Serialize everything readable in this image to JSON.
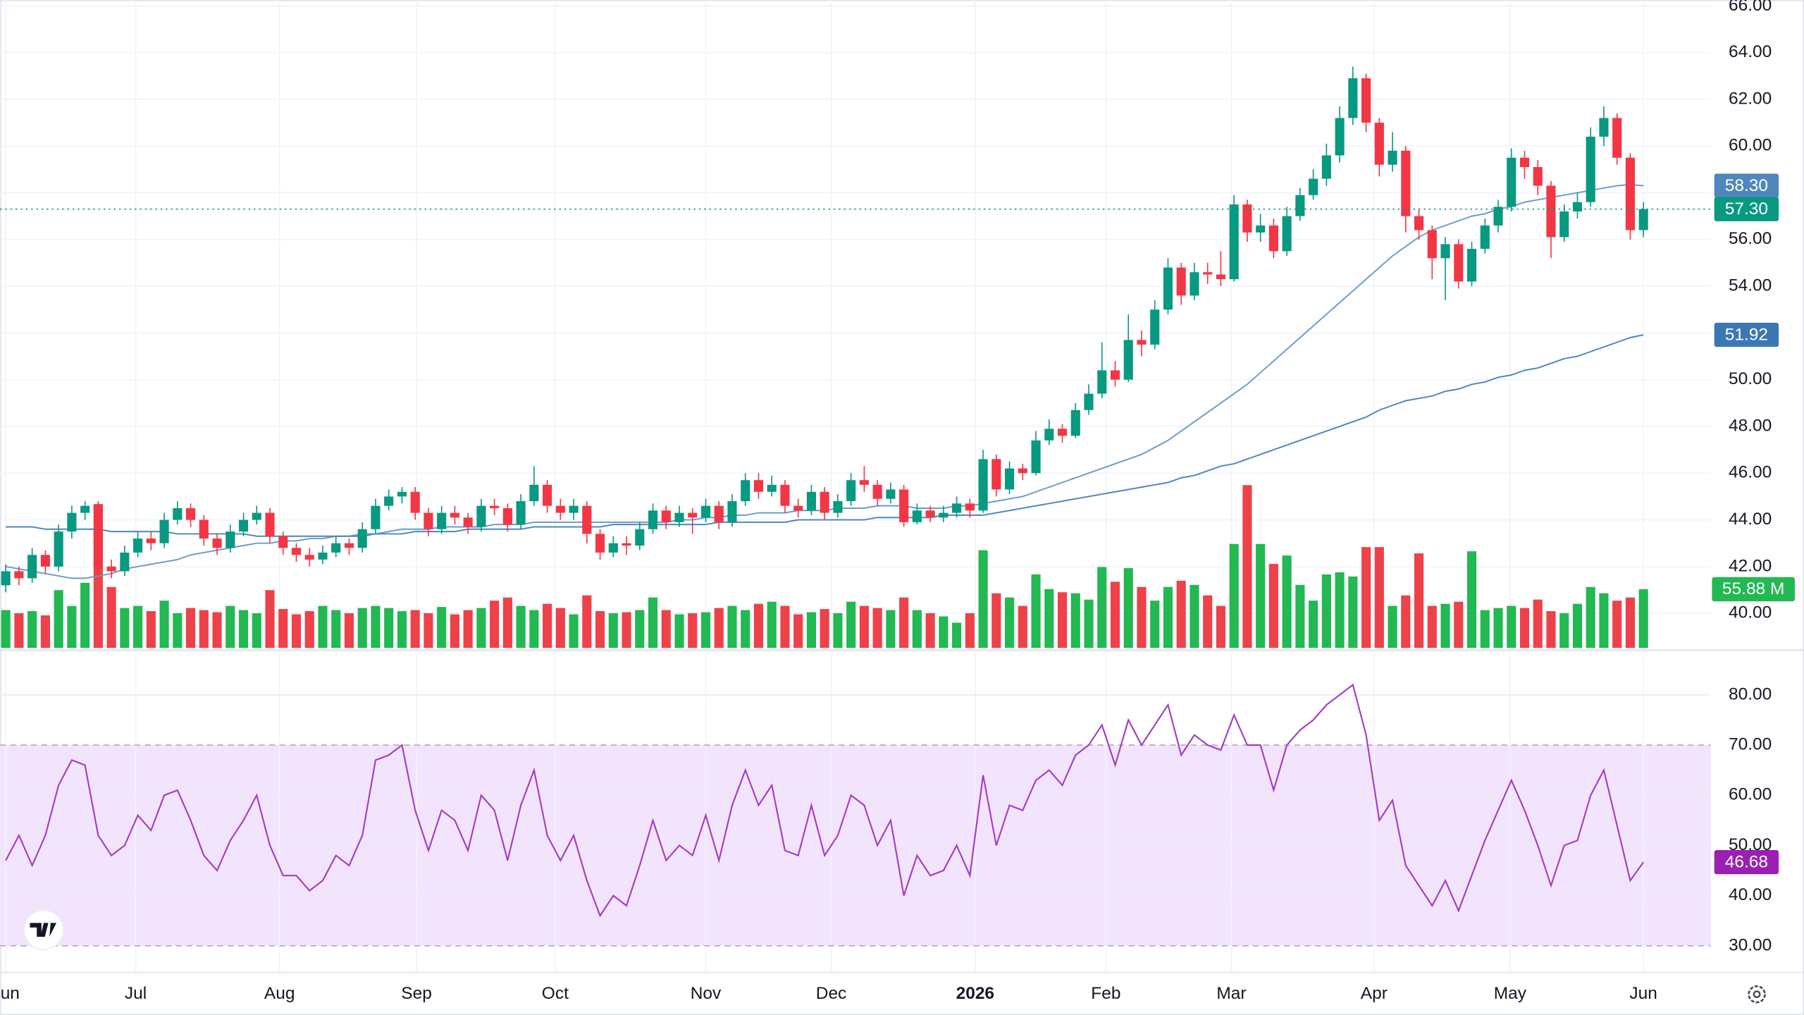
{
  "chart_data": {
    "type": "candlestick",
    "x": [
      0,
      1,
      2,
      3,
      4,
      5,
      6,
      7,
      8,
      9,
      10,
      11,
      12,
      13,
      14,
      15,
      16,
      17,
      18,
      19,
      20,
      21,
      22,
      23,
      24,
      25,
      26,
      27,
      28,
      29,
      30,
      31,
      32,
      33,
      34,
      35,
      36,
      37,
      38,
      39,
      40,
      41,
      42,
      43,
      44,
      45,
      46,
      47,
      48,
      49,
      50,
      51,
      52,
      53,
      54,
      55,
      56,
      57,
      58,
      59,
      60,
      61,
      62,
      63,
      64,
      65,
      66,
      67,
      68,
      69,
      70,
      71,
      72,
      73,
      74,
      75,
      76,
      77,
      78,
      79,
      80,
      81,
      82,
      83,
      84,
      85,
      86,
      87,
      88,
      89,
      90,
      91,
      92,
      93,
      94,
      95,
      96,
      97,
      98,
      99,
      100,
      101,
      102,
      103,
      104,
      105,
      106,
      107,
      108,
      109,
      110,
      111,
      112,
      113,
      114,
      115,
      116,
      117,
      118,
      119,
      120,
      121,
      122,
      123,
      124
    ],
    "xlim": [
      -0.436,
      129.1
    ],
    "xticks": [
      {
        "value": 0,
        "label": "Jun"
      },
      {
        "value": 9.84,
        "label": "Jul"
      },
      {
        "value": 20.73,
        "label": "Aug"
      },
      {
        "value": 31.1,
        "label": "Sep"
      },
      {
        "value": 41.6,
        "label": "Oct"
      },
      {
        "value": 53.0,
        "label": "Nov"
      },
      {
        "value": 62.5,
        "label": "Dec"
      },
      {
        "value": 73.4,
        "label": "2026"
      },
      {
        "value": 83.3,
        "label": "Feb"
      },
      {
        "value": 92.8,
        "label": "Mar"
      },
      {
        "value": 103.6,
        "label": "Apr"
      },
      {
        "value": 113.9,
        "label": "May"
      },
      {
        "value": 124.0,
        "label": "Jun"
      }
    ],
    "ylim": [
      38.52,
      66.25
    ],
    "yticks": [
      {
        "value": 40,
        "label": "40.00"
      },
      {
        "value": 42,
        "label": "42.00"
      },
      {
        "value": 44,
        "label": "44.00"
      },
      {
        "value": 46,
        "label": "46.00"
      },
      {
        "value": 48,
        "label": "48.00"
      },
      {
        "value": 50,
        "label": "50.00"
      },
      {
        "value": 52,
        "label": "52.00"
      },
      {
        "value": 54,
        "label": "54.00"
      },
      {
        "value": 56,
        "label": "56.00"
      },
      {
        "value": 58,
        "label": "58.00"
      },
      {
        "value": 60,
        "label": "60.00"
      },
      {
        "value": 62,
        "label": "62.00"
      },
      {
        "value": 64,
        "label": "64.00"
      },
      {
        "value": 66,
        "label": "66.00"
      }
    ],
    "grid": true,
    "up_color": "#089981",
    "down_color": "#f23645",
    "open": [
      41.2,
      41.8,
      41.5,
      42.5,
      42.0,
      43.5,
      44.3,
      44.6,
      42.0,
      41.8,
      42.6,
      43.2,
      43.0,
      44.0,
      44.5,
      44.0,
      43.2,
      42.8,
      43.5,
      44.0,
      44.3,
      43.3,
      42.8,
      42.5,
      42.3,
      42.6,
      43.0,
      42.8,
      43.6,
      44.6,
      45.0,
      45.2,
      44.3,
      43.6,
      44.3,
      44.1,
      43.7,
      44.6,
      44.5,
      43.8,
      44.8,
      45.5,
      44.6,
      44.3,
      44.6,
      43.4,
      42.6,
      43.0,
      42.9,
      43.6,
      44.4,
      43.9,
      44.3,
      44.1,
      44.6,
      43.9,
      44.8,
      45.7,
      45.2,
      45.5,
      44.6,
      44.4,
      45.2,
      44.3,
      44.8,
      45.7,
      45.5,
      44.9,
      45.3,
      43.9,
      44.4,
      44.1,
      44.3,
      44.7,
      44.4,
      46.6,
      45.3,
      46.2,
      46.0,
      47.4,
      47.9,
      47.6,
      48.7,
      49.4,
      50.4,
      50.0,
      51.7,
      51.5,
      53.0,
      54.8,
      53.6,
      54.6,
      54.5,
      54.3,
      57.5,
      56.3,
      56.6,
      55.5,
      57.0,
      57.9,
      58.6,
      59.6,
      61.2,
      62.9,
      61.0,
      59.2,
      59.8,
      57.0,
      56.4,
      55.2,
      55.8,
      54.2,
      55.6,
      56.6,
      57.4,
      59.5,
      59.1,
      58.3,
      56.1,
      57.2,
      57.6,
      60.4,
      61.2,
      59.5,
      56.4
    ],
    "high": [
      42.1,
      42.0,
      42.8,
      42.7,
      43.8,
      44.6,
      44.8,
      44.8,
      42.3,
      42.9,
      43.5,
      43.5,
      44.3,
      44.8,
      44.7,
      44.2,
      43.4,
      43.8,
      44.3,
      44.6,
      44.5,
      43.5,
      43.0,
      42.8,
      42.9,
      43.3,
      43.2,
      43.9,
      44.9,
      45.3,
      45.4,
      45.4,
      44.5,
      44.6,
      44.6,
      44.3,
      44.9,
      44.9,
      44.7,
      45.1,
      46.3,
      45.7,
      44.9,
      44.9,
      44.8,
      43.6,
      43.3,
      43.3,
      43.9,
      44.7,
      44.6,
      44.6,
      44.5,
      44.9,
      44.8,
      45.1,
      46.0,
      46.0,
      45.9,
      45.7,
      44.9,
      45.5,
      45.4,
      45.1,
      46.0,
      46.3,
      45.7,
      45.6,
      45.5,
      44.7,
      44.6,
      44.6,
      45.0,
      44.9,
      47.0,
      46.8,
      46.5,
      46.4,
      47.8,
      48.3,
      48.1,
      49.0,
      49.8,
      51.6,
      50.8,
      52.8,
      52.1,
      53.4,
      55.2,
      55.0,
      55.0,
      55.0,
      55.5,
      57.9,
      57.7,
      57.1,
      56.9,
      57.4,
      58.2,
      59.0,
      60.1,
      61.7,
      63.4,
      63.1,
      61.2,
      60.6,
      60.0,
      57.3,
      56.6,
      56.1,
      56.0,
      55.9,
      56.9,
      57.7,
      59.9,
      59.8,
      59.4,
      58.5,
      57.5,
      58.0,
      60.8,
      61.7,
      61.4,
      59.7,
      57.6
    ],
    "low": [
      40.9,
      41.2,
      41.3,
      41.7,
      41.8,
      43.2,
      44.0,
      41.6,
      41.5,
      41.6,
      42.4,
      42.7,
      42.8,
      43.8,
      43.7,
      42.9,
      42.5,
      42.6,
      43.3,
      43.8,
      43.0,
      42.5,
      42.2,
      42.0,
      42.1,
      42.4,
      42.5,
      42.6,
      43.4,
      44.4,
      44.7,
      44.0,
      43.3,
      43.4,
      43.8,
      43.4,
      43.5,
      44.2,
      43.5,
      43.6,
      44.6,
      44.3,
      44.0,
      44.0,
      43.0,
      42.3,
      42.4,
      42.5,
      42.7,
      43.4,
      43.6,
      43.7,
      43.4,
      43.9,
      43.6,
      43.7,
      44.6,
      44.9,
      45.0,
      44.3,
      44.1,
      44.2,
      44.0,
      44.1,
      44.6,
      45.2,
      44.6,
      44.7,
      43.7,
      43.8,
      43.9,
      43.9,
      44.1,
      44.1,
      44.3,
      45.0,
      45.1,
      45.7,
      45.9,
      47.2,
      47.3,
      47.5,
      48.5,
      49.2,
      49.7,
      49.9,
      51.0,
      51.3,
      52.8,
      53.2,
      53.4,
      54.1,
      54.0,
      54.2,
      55.9,
      55.9,
      55.2,
      55.3,
      56.8,
      57.7,
      58.3,
      59.3,
      60.9,
      60.6,
      58.7,
      58.9,
      56.3,
      56.0,
      54.3,
      53.4,
      53.9,
      54.0,
      55.4,
      56.3,
      57.2,
      58.6,
      57.9,
      55.2,
      55.9,
      56.9,
      57.4,
      60.0,
      59.2,
      56.0,
      56.1
    ],
    "close": [
      41.8,
      41.5,
      42.5,
      42.0,
      43.5,
      44.3,
      44.6,
      42.0,
      41.8,
      42.6,
      43.2,
      43.0,
      44.0,
      44.5,
      44.0,
      43.2,
      42.8,
      43.5,
      44.0,
      44.3,
      43.3,
      42.8,
      42.5,
      42.3,
      42.6,
      43.0,
      42.8,
      43.6,
      44.6,
      45.0,
      45.2,
      44.3,
      43.6,
      44.3,
      44.1,
      43.7,
      44.6,
      44.5,
      43.8,
      44.8,
      45.5,
      44.6,
      44.3,
      44.6,
      43.4,
      42.6,
      43.0,
      42.9,
      43.6,
      44.4,
      43.9,
      44.3,
      44.1,
      44.6,
      43.9,
      44.8,
      45.7,
      45.2,
      45.5,
      44.6,
      44.4,
      45.2,
      44.3,
      44.8,
      45.7,
      45.5,
      44.9,
      45.3,
      43.9,
      44.4,
      44.1,
      44.3,
      44.7,
      44.4,
      46.6,
      45.3,
      46.2,
      46.0,
      47.4,
      47.9,
      47.6,
      48.7,
      49.4,
      50.4,
      50.0,
      51.7,
      51.5,
      53.0,
      54.8,
      53.6,
      54.6,
      54.5,
      54.3,
      57.5,
      56.3,
      56.6,
      55.5,
      57.0,
      57.9,
      58.6,
      59.6,
      61.2,
      62.9,
      61.0,
      59.2,
      59.8,
      57.0,
      56.4,
      55.2,
      55.8,
      54.2,
      55.6,
      56.6,
      57.4,
      59.5,
      59.1,
      58.3,
      56.1,
      57.2,
      57.6,
      60.4,
      61.2,
      59.5,
      56.4,
      57.3
    ],
    "close_label": "57.30",
    "series": [
      {
        "color": "#6a9cc9",
        "label_color": "#4f86bd",
        "last_label": "58.30",
        "values": [
          42.0,
          41.9,
          41.8,
          41.7,
          41.6,
          41.5,
          41.5,
          41.6,
          41.7,
          41.9,
          42.0,
          42.1,
          42.2,
          42.3,
          42.5,
          42.6,
          42.7,
          42.8,
          42.9,
          43.0,
          43.0,
          43.1,
          43.1,
          43.2,
          43.2,
          43.3,
          43.3,
          43.4,
          43.4,
          43.5,
          43.6,
          43.6,
          43.6,
          43.7,
          43.7,
          43.7,
          43.7,
          43.8,
          43.8,
          43.8,
          43.9,
          43.9,
          43.9,
          43.9,
          43.9,
          43.9,
          43.9,
          43.9,
          43.9,
          43.9,
          43.9,
          44.0,
          44.0,
          44.1,
          44.1,
          44.2,
          44.2,
          44.3,
          44.3,
          44.3,
          44.4,
          44.4,
          44.4,
          44.5,
          44.5,
          44.5,
          44.6,
          44.6,
          44.6,
          44.5,
          44.5,
          44.5,
          44.6,
          44.6,
          44.7,
          44.8,
          44.9,
          45.0,
          45.2,
          45.4,
          45.6,
          45.8,
          46.0,
          46.2,
          46.4,
          46.6,
          46.8,
          47.1,
          47.4,
          47.8,
          48.2,
          48.6,
          49.0,
          49.4,
          49.8,
          50.3,
          50.8,
          51.3,
          51.8,
          52.3,
          52.8,
          53.3,
          53.8,
          54.3,
          54.8,
          55.3,
          55.7,
          56.1,
          56.4,
          56.6,
          56.8,
          57.0,
          57.1,
          57.3,
          57.4,
          57.6,
          57.7,
          57.8,
          57.9,
          58.0,
          58.1,
          58.2,
          58.3,
          58.35,
          58.3
        ]
      },
      {
        "color": "#4f86bd",
        "label_color": "#3b78b3",
        "last_label": "51.92",
        "values": [
          43.7,
          43.7,
          43.7,
          43.6,
          43.6,
          43.6,
          43.6,
          43.6,
          43.5,
          43.5,
          43.5,
          43.5,
          43.5,
          43.4,
          43.4,
          43.4,
          43.4,
          43.4,
          43.4,
          43.3,
          43.3,
          43.3,
          43.3,
          43.3,
          43.3,
          43.3,
          43.3,
          43.3,
          43.4,
          43.4,
          43.4,
          43.5,
          43.5,
          43.5,
          43.5,
          43.6,
          43.6,
          43.6,
          43.6,
          43.6,
          43.7,
          43.7,
          43.7,
          43.7,
          43.7,
          43.7,
          43.8,
          43.8,
          43.8,
          43.8,
          43.8,
          43.8,
          43.8,
          43.8,
          43.9,
          43.9,
          43.9,
          43.9,
          43.9,
          43.9,
          44.0,
          44.0,
          44.0,
          44.0,
          44.0,
          44.0,
          44.1,
          44.1,
          44.1,
          44.1,
          44.1,
          44.2,
          44.2,
          44.2,
          44.2,
          44.3,
          44.4,
          44.5,
          44.6,
          44.7,
          44.8,
          44.9,
          45.0,
          45.1,
          45.2,
          45.3,
          45.4,
          45.5,
          45.6,
          45.8,
          45.9,
          46.1,
          46.3,
          46.4,
          46.6,
          46.8,
          47.0,
          47.2,
          47.4,
          47.6,
          47.8,
          48.0,
          48.2,
          48.4,
          48.7,
          48.9,
          49.1,
          49.2,
          49.3,
          49.5,
          49.6,
          49.8,
          49.9,
          50.1,
          50.2,
          50.4,
          50.5,
          50.7,
          50.9,
          51.0,
          51.2,
          51.4,
          51.6,
          51.8,
          51.92
        ]
      }
    ],
    "volume": {
      "up_color": "#22b852",
      "down_color": "#ee4149",
      "vlim": [
        0,
        617
      ],
      "last_label": "55.88 M",
      "values": [
        36,
        33,
        35,
        31,
        55,
        40,
        62,
        137,
        58,
        38,
        40,
        35,
        45,
        33,
        38,
        36,
        34,
        40,
        36,
        33,
        55,
        37,
        32,
        35,
        40,
        36,
        33,
        38,
        40,
        38,
        35,
        36,
        33,
        39,
        32,
        36,
        38,
        45,
        48,
        40,
        36,
        42,
        38,
        32,
        50,
        35,
        33,
        34,
        36,
        48,
        36,
        32,
        33,
        34,
        38,
        40,
        36,
        42,
        44,
        40,
        32,
        34,
        37,
        33,
        44,
        40,
        38,
        36,
        48,
        36,
        33,
        30,
        24,
        33,
        93,
        52,
        48,
        40,
        70,
        56,
        53,
        52,
        46,
        77,
        63,
        76,
        58,
        45,
        58,
        64,
        60,
        50,
        40,
        99,
        155,
        99,
        80,
        88,
        60,
        45,
        70,
        72,
        68,
        96,
        96,
        40,
        50,
        90,
        40,
        42,
        44,
        92,
        36,
        38,
        40,
        38,
        46,
        35,
        33,
        42,
        58,
        52,
        45,
        48,
        55.88
      ]
    },
    "rsi": {
      "color": "#a23cc4",
      "label_color": "#9a1fb3",
      "band_color": "#f3e4fd",
      "ylim": [
        24.7,
        88.9
      ],
      "yticks": [
        {
          "value": 30,
          "label": "30.00"
        },
        {
          "value": 40,
          "label": "40.00"
        },
        {
          "value": 50,
          "label": "50.00"
        },
        {
          "value": 60,
          "label": "60.00"
        },
        {
          "value": 70,
          "label": "70.00"
        },
        {
          "value": 80,
          "label": "80.00"
        }
      ],
      "band": [
        30,
        70
      ],
      "values": [
        47,
        52,
        46,
        52,
        62,
        67,
        66,
        52,
        48,
        50,
        56,
        53,
        60,
        61,
        55,
        48,
        45,
        51,
        55,
        60,
        50,
        44,
        44,
        41,
        43,
        48,
        46,
        52,
        67,
        68,
        70,
        57,
        49,
        57,
        55,
        49,
        60,
        57,
        47,
        58,
        65,
        52,
        47,
        52,
        43,
        36,
        40,
        38,
        46,
        55,
        47,
        50,
        48,
        56,
        47,
        58,
        65,
        58,
        62,
        49,
        48,
        58,
        48,
        52,
        60,
        58,
        50,
        55,
        40,
        48,
        44,
        45,
        50,
        44,
        64,
        50,
        58,
        57,
        63,
        65,
        62,
        68,
        70,
        74,
        66,
        75,
        70,
        74,
        78,
        68,
        72,
        70,
        69,
        76,
        70,
        70,
        61,
        70,
        73,
        75,
        78,
        80,
        82,
        72,
        55,
        59,
        46,
        42,
        38,
        43,
        37,
        44,
        51,
        57,
        63,
        57,
        50,
        42,
        50,
        51,
        60,
        65,
        54,
        43,
        46.68
      ]
    }
  }
}
